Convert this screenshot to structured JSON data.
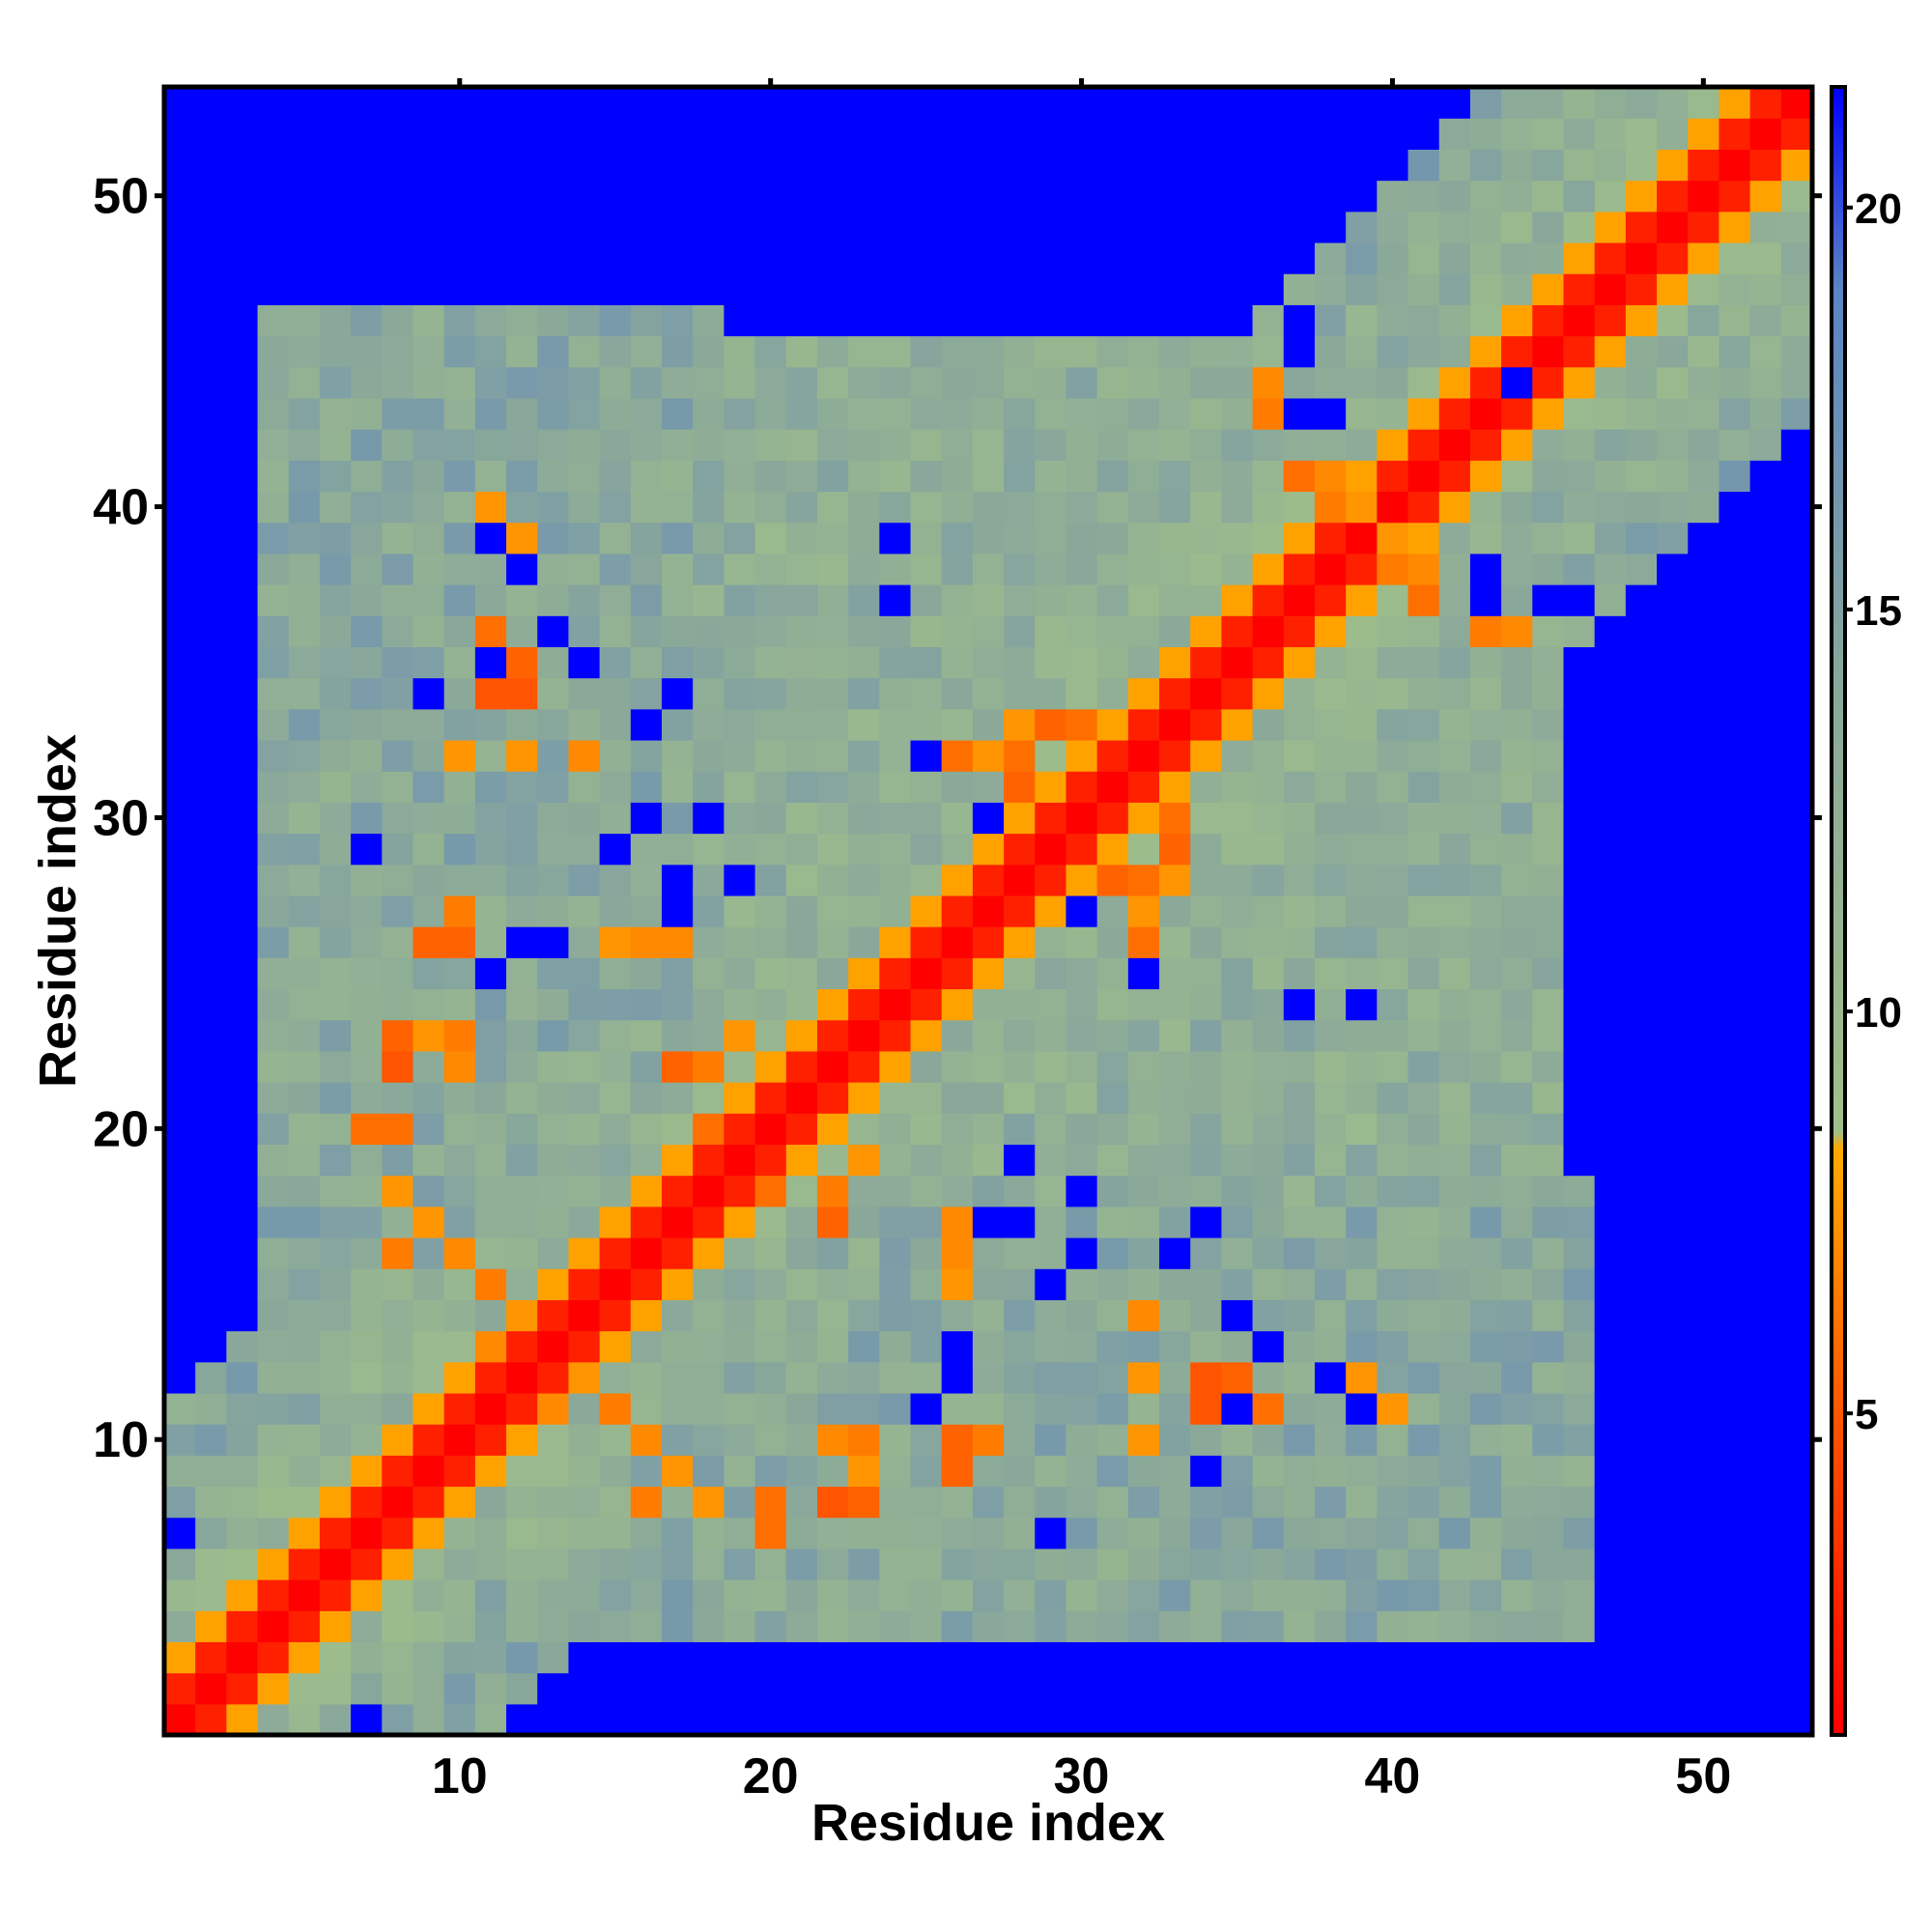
{
  "chart_data": {
    "type": "heatmap",
    "title": "",
    "xlabel": "Residue index",
    "ylabel": "Residue index",
    "n_residues": 53,
    "xlim": [
      0.5,
      53.5
    ],
    "ylim": [
      0.5,
      53.5
    ],
    "x_ticks": [
      10,
      20,
      30,
      40,
      50
    ],
    "y_ticks": [
      10,
      20,
      30,
      40,
      50
    ],
    "x_tick_labels": [
      "10",
      "20",
      "30",
      "40",
      "50"
    ],
    "y_tick_labels": [
      "10",
      "20",
      "30",
      "40",
      "50"
    ],
    "colorbar": {
      "range": [
        1,
        21.5
      ],
      "ticks": [
        5,
        10,
        15,
        20
      ],
      "tick_labels": [
        "5",
        "10",
        "15",
        "20"
      ],
      "position": "right",
      "stops": [
        {
          "value": 1.0,
          "color": "#ff0000"
        },
        {
          "value": 5.0,
          "color": "#ff5500"
        },
        {
          "value": 8.3,
          "color": "#ffaa00"
        },
        {
          "value": 8.5,
          "color": "#9fbf8a"
        },
        {
          "value": 14.0,
          "color": "#8aa89a"
        },
        {
          "value": 19.0,
          "color": "#5b84c4"
        },
        {
          "value": 21.5,
          "color": "#0000ff"
        }
      ]
    },
    "background_color": "#0000ff",
    "data_note": "symmetric residue–residue distance map; values in colorbar units",
    "diagonal_band": [
      {
        "offset": 0,
        "value": 1.0
      },
      {
        "offset": 1,
        "value": 2.5
      },
      {
        "offset": 2,
        "value": 8.0
      }
    ],
    "contact_regions": [
      {
        "name": "near-diagonal",
        "max_offset": 10,
        "value": 10.5
      },
      {
        "name": "n-terminal-arm",
        "x_range": [
          4,
          18
        ],
        "y_range": [
          7,
          46
        ],
        "value": 13.5
      },
      {
        "name": "central-sheet",
        "x_range": [
          18,
          38
        ],
        "y_range": [
          22,
          45
        ],
        "value": 12.5
      },
      {
        "name": "c-terminal-arm",
        "x_range": [
          26,
          48
        ],
        "y_range": [
          8,
          18
        ],
        "value": 13.0
      }
    ],
    "highlight_contacts": [
      [
        11,
        34,
        5.0
      ],
      [
        12,
        34,
        5.0
      ],
      [
        12,
        39,
        7.5
      ],
      [
        12,
        32,
        7.0
      ],
      [
        10,
        32,
        7.0
      ],
      [
        14,
        32,
        7.0
      ],
      [
        9,
        26,
        5.5
      ],
      [
        15,
        26,
        7.5
      ],
      [
        17,
        26,
        7.0
      ],
      [
        8,
        23,
        5.5
      ],
      [
        9,
        23,
        7.5
      ],
      [
        10,
        23,
        6.5
      ],
      [
        7,
        20,
        6.0
      ],
      [
        8,
        18,
        6.5
      ],
      [
        9,
        17,
        7.0
      ],
      [
        10,
        16,
        7.5
      ],
      [
        11,
        15,
        6.5
      ],
      [
        12,
        14,
        7.5
      ],
      [
        13,
        11,
        7.0
      ],
      [
        16,
        10,
        7.0
      ],
      [
        17,
        9,
        7.5
      ],
      [
        16,
        8,
        6.5
      ],
      [
        18,
        8,
        7.5
      ],
      [
        20,
        8,
        6.0
      ],
      [
        22,
        8,
        5.0
      ],
      [
        22,
        10,
        7.0
      ],
      [
        26,
        10,
        5.5
      ],
      [
        27,
        10,
        6.5
      ],
      [
        32,
        10,
        7.5
      ],
      [
        32,
        12,
        7.5
      ],
      [
        35,
        12,
        5.5
      ],
      [
        36,
        11,
        6.0
      ],
      [
        40,
        11,
        7.5
      ],
      [
        26,
        16,
        7.0
      ],
      [
        22,
        18,
        5.5
      ],
      [
        20,
        18,
        6.0
      ],
      [
        17,
        22,
        5.5
      ],
      [
        18,
        22,
        6.5
      ],
      [
        19,
        23,
        7.5
      ],
      [
        27,
        32,
        7.0
      ],
      [
        26,
        32,
        6.0
      ],
      [
        28,
        32,
        6.5
      ],
      [
        29,
        33,
        5.5
      ],
      [
        30,
        33,
        6.0
      ],
      [
        31,
        28,
        5.5
      ],
      [
        32,
        28,
        6.0
      ],
      [
        33,
        28,
        7.5
      ],
      [
        32,
        26,
        6.0
      ],
      [
        32,
        27,
        7.5
      ],
      [
        37,
        41,
        6.0
      ],
      [
        38,
        41,
        7.0
      ],
      [
        38,
        40,
        6.5
      ],
      [
        39,
        40,
        7.5
      ],
      [
        43,
        36,
        6.5
      ],
      [
        44,
        36,
        7.0
      ]
    ],
    "holes": [
      [
        12,
        38
      ],
      [
        11,
        35
      ],
      [
        14,
        35
      ],
      [
        16,
        33
      ],
      [
        7,
        29
      ],
      [
        15,
        29
      ],
      [
        18,
        30
      ],
      [
        17,
        27
      ],
      [
        13,
        26
      ],
      [
        11,
        25
      ],
      [
        27,
        30
      ],
      [
        32,
        25
      ],
      [
        35,
        14
      ],
      [
        36,
        13
      ],
      [
        39,
        11
      ],
      [
        34,
        9
      ],
      [
        26,
        12
      ],
      [
        25,
        11
      ],
      [
        30,
        16
      ],
      [
        28,
        17
      ],
      [
        30,
        18
      ],
      [
        34,
        17
      ],
      [
        24,
        37
      ],
      [
        39,
        24
      ],
      [
        45,
        37
      ],
      [
        46,
        37
      ],
      [
        44,
        44
      ],
      [
        37,
        43
      ],
      [
        38,
        43
      ],
      [
        28,
        19
      ],
      [
        7,
        1
      ],
      [
        20,
        2
      ],
      [
        17,
        1
      ],
      [
        22,
        2
      ]
    ]
  }
}
